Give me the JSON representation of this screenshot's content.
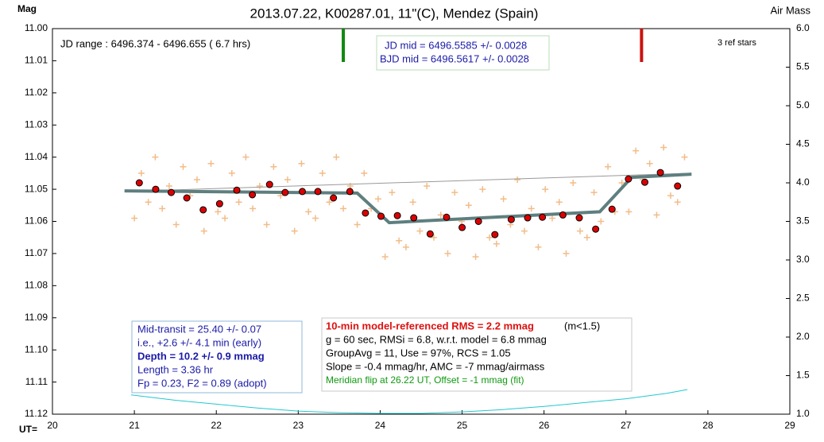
{
  "chart_data": {
    "type": "scatter",
    "title": "2013.07.22, K00287.01, 11\"(C), Mendez (Spain)",
    "ylabel": "Mag",
    "y2label": "Air Mass",
    "xlabel": "UT=",
    "xlim": [
      20,
      29
    ],
    "xticks": [
      20,
      21,
      22,
      23,
      24,
      25,
      26,
      27,
      28,
      29
    ],
    "ylim": [
      11.0,
      11.12
    ],
    "yticks": [
      {
        "value": 11.0,
        "label": "11.00"
      },
      11.01,
      11.02,
      11.03,
      11.04,
      11.05,
      11.06,
      11.07,
      11.08,
      11.09,
      {
        "value": 11.1,
        "label": "11.10"
      },
      11.11,
      11.12
    ],
    "y2lim": [
      1.0,
      6.0
    ],
    "y2ticks": [
      {
        "value": 1.0,
        "label": "1.0"
      },
      1.5,
      {
        "value": 2.0,
        "label": "2.0"
      },
      2.5,
      {
        "value": 3.0,
        "label": "3.0"
      },
      3.5,
      {
        "value": 4.0,
        "label": "4.0"
      },
      4.5,
      {
        "value": 5.0,
        "label": "5.0"
      },
      5.5,
      {
        "value": 6.0,
        "label": "6.0"
      }
    ],
    "series": [
      {
        "marker": "cross",
        "color": "#f2bc8a",
        "x": [
          21.0,
          21.085,
          21.17,
          21.255,
          21.34,
          21.425,
          21.51,
          21.595,
          21.68,
          21.765,
          21.85,
          21.935,
          22.02,
          22.105,
          22.19,
          22.275,
          22.36,
          22.445,
          22.53,
          22.615,
          22.7,
          22.785,
          22.87,
          22.955,
          23.04,
          23.125,
          23.21,
          23.295,
          23.38,
          23.465,
          23.55,
          23.635,
          23.72,
          23.805,
          23.89,
          23.975,
          24.06,
          24.145,
          24.23,
          24.315,
          24.4,
          24.485,
          24.57,
          24.655,
          24.74,
          24.825,
          24.91,
          24.995,
          25.08,
          25.165,
          25.25,
          25.335,
          25.42,
          25.505,
          25.59,
          25.675,
          25.76,
          25.845,
          25.93,
          26.015,
          26.1,
          26.185,
          26.27,
          26.355,
          26.44,
          26.525,
          26.61,
          26.695,
          26.78,
          26.865,
          26.95,
          27.035,
          27.12,
          27.205,
          27.29,
          27.375,
          27.46,
          27.545,
          27.63,
          27.715
        ],
        "values": [
          11.059,
          11.045,
          11.054,
          11.04,
          11.056,
          11.049,
          11.061,
          11.043,
          11.052,
          11.047,
          11.063,
          11.042,
          11.057,
          11.059,
          11.045,
          11.054,
          11.04,
          11.056,
          11.049,
          11.061,
          11.043,
          11.052,
          11.047,
          11.063,
          11.042,
          11.057,
          11.059,
          11.045,
          11.054,
          11.04,
          11.056,
          11.049,
          11.061,
          11.045,
          11.056,
          11.053,
          11.071,
          11.051,
          11.066,
          11.068,
          11.054,
          11.063,
          11.049,
          11.065,
          11.058,
          11.07,
          11.051,
          11.06,
          11.055,
          11.071,
          11.05,
          11.065,
          11.067,
          11.053,
          11.061,
          11.047,
          11.063,
          11.056,
          11.068,
          11.05,
          11.059,
          11.054,
          11.07,
          11.048,
          11.063,
          11.065,
          11.051,
          11.06,
          11.043,
          11.057,
          11.048,
          11.057,
          11.038,
          11.047,
          11.042,
          11.058,
          11.037,
          11.052,
          11.054,
          11.04
        ]
      },
      {
        "marker": "line",
        "color": "#999999",
        "x": [
          20.88,
          27.8
        ],
        "values": [
          11.0507,
          11.045
        ]
      },
      {
        "marker": "line",
        "color": "#5f7f7f",
        "x": [
          20.88,
          23.72,
          24.11,
          26.68,
          27.07,
          27.8
        ],
        "values": [
          11.0505,
          11.0512,
          11.0604,
          11.057,
          11.0463,
          11.0453
        ]
      },
      {
        "marker": "dot",
        "color": "#dd0000",
        "x": [
          21.06,
          21.26,
          21.45,
          21.64,
          21.84,
          22.04,
          22.25,
          22.44,
          22.65,
          22.84,
          23.05,
          23.24,
          23.43,
          23.63,
          23.82,
          24.01,
          24.21,
          24.41,
          24.61,
          24.81,
          25.0,
          25.2,
          25.4,
          25.6,
          25.8,
          25.98,
          26.23,
          26.43,
          26.63,
          26.83,
          27.03,
          27.23,
          27.42,
          27.63
        ],
        "values": [
          11.048,
          11.05,
          11.051,
          11.0527,
          11.0564,
          11.0545,
          11.0503,
          11.0517,
          11.0485,
          11.051,
          11.0507,
          11.0507,
          11.0527,
          11.0507,
          11.0574,
          11.0584,
          11.0582,
          11.0589,
          11.0639,
          11.0587,
          11.0619,
          11.06,
          11.0641,
          11.0594,
          11.0589,
          11.0587,
          11.058,
          11.0589,
          11.0624,
          11.0562,
          11.0468,
          11.0478,
          11.0448,
          11.049
        ]
      },
      {
        "marker": "line",
        "color": "#22c8d0",
        "axis": "y2",
        "x": [
          20.96,
          21.5,
          22.0,
          22.5,
          23.0,
          23.5,
          24.0,
          24.5,
          25.0,
          25.5,
          26.0,
          26.5,
          27.0,
          27.5,
          27.75
        ],
        "values": [
          1.25,
          1.18,
          1.13,
          1.08,
          1.04,
          1.02,
          1.01,
          1.01,
          1.03,
          1.06,
          1.1,
          1.15,
          1.2,
          1.27,
          1.32
        ]
      }
    ],
    "markers": [
      {
        "x": 23.55,
        "color": "#118811"
      },
      {
        "x": 27.19,
        "color": "#cc1111"
      }
    ],
    "notes": {
      "jd_range": "JD range : 6496.374 - 6496.655 ( 6.7 hrs)",
      "jd_mid": "JD mid = 6496.5585  +/- 0.0028",
      "bjd_mid": "BJD mid = 6496.5617  +/- 0.0028",
      "ref_stars": "3 ref stars",
      "left_box": [
        "Mid-transit = 25.40 +/- 0.07",
        " i.e., +2.6 +/- 4.1 min (early)",
        "Depth = 10.2 +/- 0.9 mmag",
        "Length = 3.36 hr",
        "Fp = 0.23, F2 = 0.89 (adopt)"
      ],
      "rms": "10-min model-referenced RMS = 2.2 mmag",
      "rms_note": "(m<1.5)",
      "right_box": [
        "g = 60 sec, RMSi = 6.8, w.r.t. model = 6.8 mmag",
        "GroupAvg = 11, Use = 97%, RCS = 1.05",
        "Slope = -0.4 mmag/hr, AMC = -7 mmag/airmass",
        "Meridian flip at 26.22 UT,  Offset = -1 mmag (fit)"
      ]
    }
  }
}
